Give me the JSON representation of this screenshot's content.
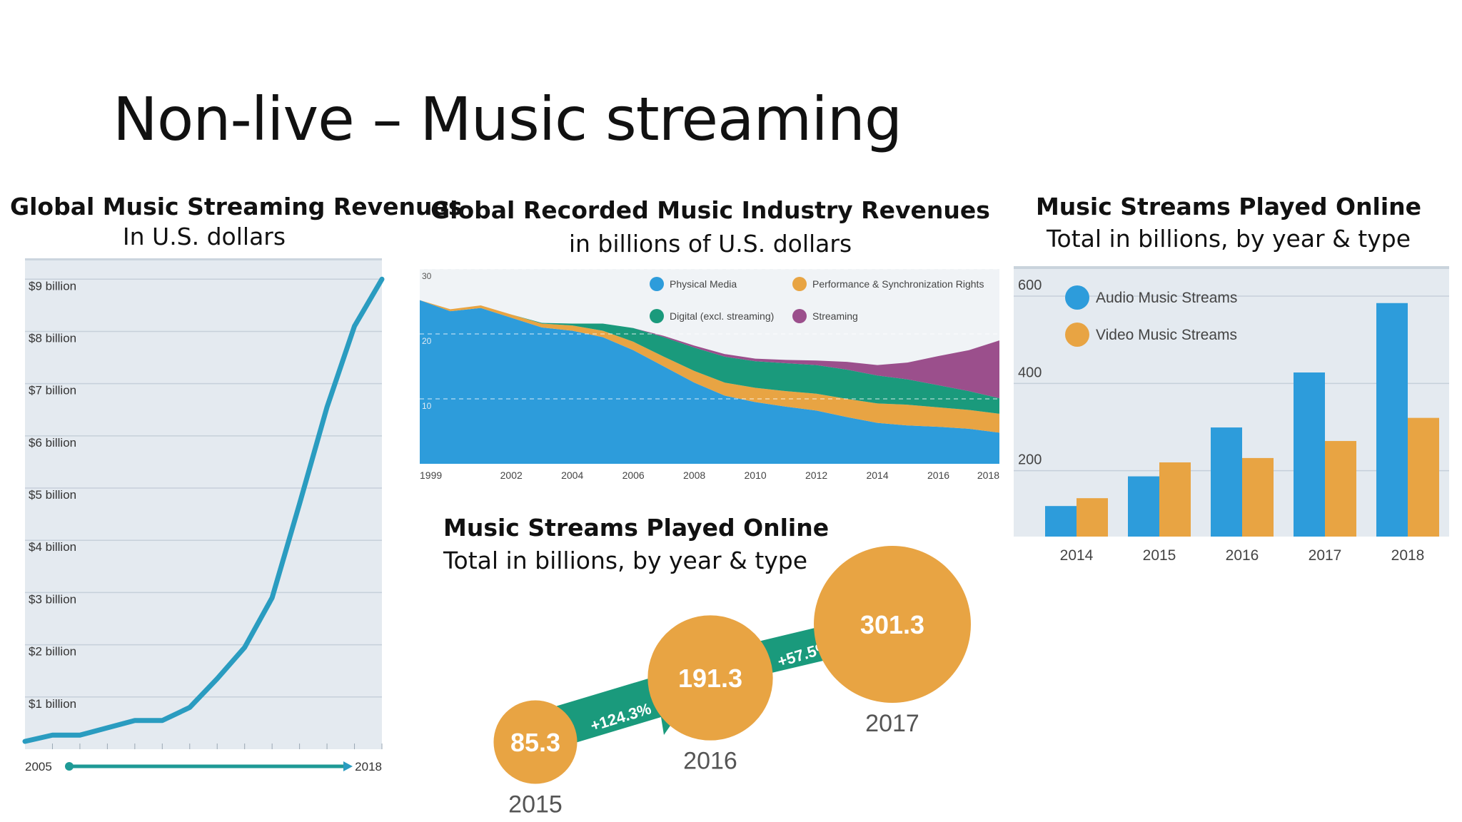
{
  "slide": {
    "title": "Non-live – Music streaming"
  },
  "colors": {
    "blue": "#2D9CDB",
    "orange": "#E8A443",
    "green": "#1A9A7C",
    "purple": "#9B4F8C",
    "teal_line": "#2A9CC0",
    "panel_bg": "#E4EAF0"
  },
  "chart1": {
    "title": "Global Music Streaming Revenues",
    "subtitle": "In U.S. dollars"
  },
  "chart2": {
    "title": "Global Recorded Music Industry Revenues",
    "subtitle": "in billions of U.S. dollars"
  },
  "chart3": {
    "title": "Music Streams Played Online",
    "subtitle": "Total in billions, by year & type"
  },
  "chart4": {
    "title": "Music Streams Played Online",
    "subtitle": "Total in billions, by year & type"
  },
  "chart_data": [
    {
      "type": "line",
      "title": "Global Music Streaming Revenues",
      "subtitle": "In U.S. dollars",
      "y_tick_labels": [
        "$1 billion",
        "$2 billion",
        "$3 billion",
        "$4 billion",
        "$5 billion",
        "$6 billion",
        "$7 billion",
        "$8 billion",
        "$9 billion"
      ],
      "y_tick_values": [
        1,
        2,
        3,
        4,
        5,
        6,
        7,
        8,
        9
      ],
      "ylim": [
        0,
        9.4
      ],
      "x_tick_labels": [
        "2005",
        "2018"
      ],
      "x": [
        2005,
        2006,
        2007,
        2008,
        2009,
        2010,
        2011,
        2012,
        2013,
        2014,
        2015,
        2016,
        2017,
        2018
      ],
      "series": [
        {
          "values": [
            0.15,
            0.27,
            0.27,
            0.41,
            0.55,
            0.55,
            0.8,
            1.35,
            1.95,
            2.9,
            4.7,
            6.55,
            8.1,
            9.0
          ]
        }
      ],
      "grid": true
    },
    {
      "type": "area",
      "title": "Global Recorded Music Industry Revenues",
      "subtitle": "in billions of U.S. dollars",
      "ylim": [
        0,
        30
      ],
      "y_tick_labels": [
        "10",
        "20",
        "30"
      ],
      "y_tick_values": [
        10,
        20,
        30
      ],
      "x_tick_labels": [
        "1999",
        "2002",
        "2004",
        "2006",
        "2008",
        "2010",
        "2012",
        "2014",
        "2016",
        "2018"
      ],
      "x_tick_values": [
        1999,
        2002,
        2004,
        2006,
        2008,
        2010,
        2012,
        2014,
        2016,
        2018
      ],
      "x": [
        1999,
        2000,
        2001,
        2002,
        2003,
        2004,
        2005,
        2006,
        2007,
        2008,
        2009,
        2010,
        2011,
        2012,
        2013,
        2014,
        2015,
        2016,
        2017,
        2018
      ],
      "legend": [
        "Physical Media",
        "Performance & Synchronization Rights",
        "Digital (excl. streaming)",
        "Streaming"
      ],
      "legend_position": "top-right",
      "series": [
        {
          "name": "Physical Media",
          "color": "#2D9CDB",
          "values": [
            25.2,
            23.5,
            24.0,
            22.5,
            21.0,
            20.5,
            19.5,
            17.5,
            15.0,
            12.5,
            10.5,
            9.5,
            8.8,
            8.2,
            7.2,
            6.3,
            5.9,
            5.7,
            5.4,
            4.8
          ]
        },
        {
          "name": "Performance & Synchronization Rights",
          "color": "#E8A443",
          "values": [
            0,
            0.3,
            0.4,
            0.5,
            0.6,
            0.8,
            1.0,
            1.3,
            1.5,
            1.8,
            2.0,
            2.2,
            2.4,
            2.6,
            2.8,
            3.0,
            3.2,
            3.0,
            2.9,
            2.9
          ]
        },
        {
          "name": "Digital (excl. streaming)",
          "color": "#1A9A7C",
          "values": [
            0,
            0,
            0,
            0,
            0.1,
            0.3,
            1.1,
            2.1,
            3.0,
            3.6,
            4.0,
            4.1,
            4.3,
            4.4,
            4.5,
            4.3,
            3.9,
            3.4,
            2.9,
            2.4
          ]
        },
        {
          "name": "Streaming",
          "color": "#9B4F8C",
          "values": [
            0,
            0,
            0,
            0,
            0,
            0,
            0,
            0,
            0.2,
            0.3,
            0.4,
            0.4,
            0.5,
            0.7,
            1.2,
            1.6,
            2.6,
            4.5,
            6.3,
            8.9
          ]
        }
      ],
      "grid": true
    },
    {
      "type": "bar",
      "title": "Music Streams Played Online",
      "subtitle": "Total in billions, by year & type",
      "categories": [
        "2015",
        "2016",
        "2017"
      ],
      "values": [
        85.3,
        191.3,
        301.3
      ],
      "annotations": [
        "+124.3%",
        "+57.5%"
      ]
    },
    {
      "type": "bar",
      "title": "Music Streams Played Online",
      "subtitle": "Total in billions, by year & type",
      "categories": [
        "2014",
        "2015",
        "2016",
        "2017",
        "2018"
      ],
      "ylim": [
        0,
        600
      ],
      "y_tick_labels": [
        "200",
        "400",
        "600"
      ],
      "y_tick_values": [
        200,
        400,
        600
      ],
      "legend_position": "top-left",
      "series": [
        {
          "name": "Audio Music Streams",
          "color": "#2D9CDB",
          "values": [
            70,
            138,
            250,
            376,
            535
          ]
        },
        {
          "name": "Video Music Streams",
          "color": "#E8A443",
          "values": [
            88,
            170,
            180,
            219,
            272
          ]
        }
      ],
      "grid": true
    }
  ]
}
